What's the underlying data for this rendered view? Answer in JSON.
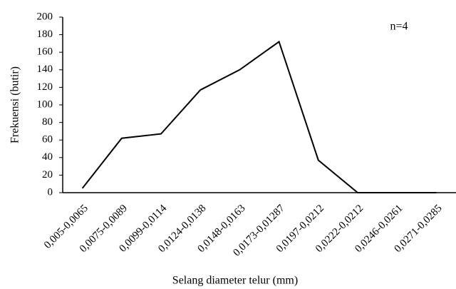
{
  "chart_data": {
    "type": "line",
    "annotation": "n=4",
    "x_label": "Selang diameter telur (mm)",
    "y_label": "Frekuensi (butir)",
    "categories": [
      "0,005-0,0065",
      "0,0075-0,0089",
      "0,0099-0,0114",
      "0,0124-0,0138",
      "0,0148-0,0163",
      "0,0173-0,01287",
      "0,0197-0,0212",
      "0,0222-0,0212",
      "0,0246-0,0261",
      "0,0271-0,0285"
    ],
    "values": [
      5,
      62,
      67,
      117,
      140,
      172,
      37,
      0,
      0,
      0
    ],
    "color": "#000000",
    "ylim": [
      0,
      200
    ],
    "yticks": [
      0,
      20,
      40,
      60,
      80,
      100,
      120,
      140,
      160,
      180,
      200
    ]
  }
}
